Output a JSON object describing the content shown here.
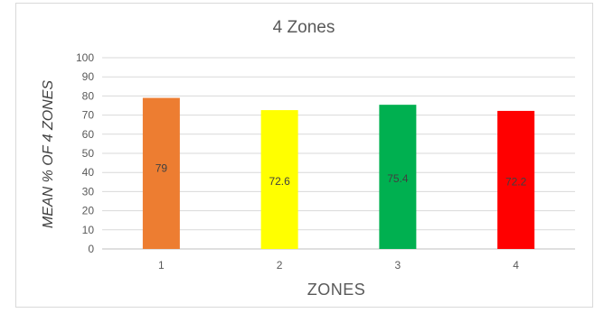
{
  "chart_data": {
    "type": "bar",
    "title": "4 Zones",
    "xlabel": "ZONES",
    "ylabel": "MEAN % OF 4 ZONES",
    "categories": [
      "1",
      "2",
      "3",
      "4"
    ],
    "values": [
      79,
      72.6,
      75.4,
      72.2
    ],
    "data_labels": [
      "79",
      "72.6",
      "75.4",
      "72.2"
    ],
    "colors": [
      "#ed7d31",
      "#ffff00",
      "#00b050",
      "#ff0000"
    ],
    "ylim": [
      0,
      100
    ],
    "yticks": [
      0,
      10,
      20,
      30,
      40,
      50,
      60,
      70,
      80,
      90,
      100
    ],
    "grid": true,
    "legend": "none"
  }
}
